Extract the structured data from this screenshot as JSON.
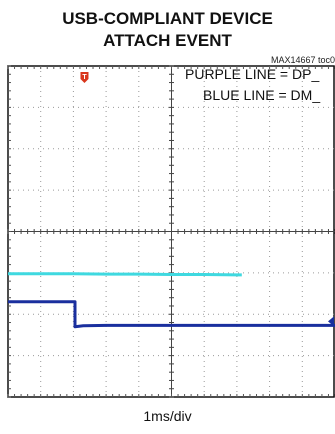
{
  "title_line1": "USB-COMPLIANT DEVICE",
  "title_line2": "ATTACH EVENT",
  "figure_id": "MAX14667 toc0",
  "legend": {
    "line1": "PURPLE LINE = DP_",
    "line2": "BLUE LINE = DM_"
  },
  "timebase": "1ms/div",
  "colors": {
    "trace_dp": "#3fd9e0",
    "trace_dm": "#1a2f9e",
    "marker": "#d9361c",
    "grid": "#9a9a9a",
    "frame": "#111111"
  },
  "chart_data": {
    "type": "line",
    "xlabel": "1ms/div",
    "x_divisions": 10,
    "y_divisions": 8,
    "grid": true,
    "legend_position": "top-right",
    "trigger_marker": "T",
    "series": [
      {
        "name": "PURPLE LINE = DP_",
        "color": "#3fd9e0",
        "x": [
          0,
          1,
          2,
          3,
          4,
          5,
          6,
          7,
          7.15
        ],
        "y": [
          2.98,
          2.98,
          2.98,
          2.97,
          2.97,
          2.96,
          2.96,
          2.95,
          2.95
        ]
      },
      {
        "name": "BLUE LINE = DM_",
        "color": "#1a2f9e",
        "x": [
          0,
          1,
          2.05,
          2.05,
          2.3,
          3,
          4,
          5,
          6,
          7,
          8,
          9,
          10
        ],
        "y": [
          2.3,
          2.3,
          2.3,
          1.7,
          1.72,
          1.73,
          1.73,
          1.73,
          1.73,
          1.73,
          1.73,
          1.73,
          1.73
        ]
      }
    ]
  }
}
